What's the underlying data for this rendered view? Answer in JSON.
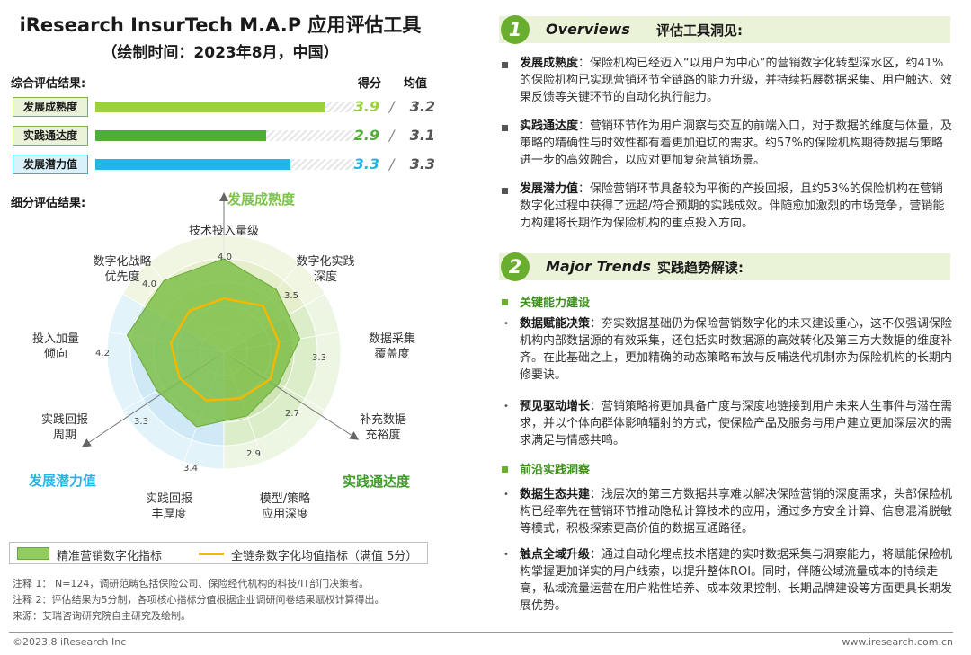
{
  "title": "iResearch InsurTech M.A.P 应用评估工具",
  "subtitle": "（绘制时间：2023年8月，中国）",
  "overall": {
    "label": "综合评估结果:",
    "score_header": "得分",
    "avg_header": "均值",
    "rows": [
      {
        "name": "发展成熟度",
        "score": "3.9",
        "avg": "3.2",
        "score_num": 3.9,
        "avg_num": 3.2,
        "color": "#9bd040",
        "score_color": "#9bd040"
      },
      {
        "name": "实践通达度",
        "score": "2.9",
        "avg": "3.1",
        "score_num": 2.9,
        "avg_num": 3.1,
        "color": "#4fae37",
        "score_color": "#4fae37"
      },
      {
        "name": "发展潜力值",
        "score": "3.3",
        "avg": "3.3",
        "score_num": 3.3,
        "avg_num": 3.3,
        "color": "#23b5e5",
        "score_color": "#23b5e5"
      }
    ]
  },
  "detail_label": "细分评估结果:",
  "chart_data": {
    "type": "radar",
    "scale_max": 5,
    "axes": [
      {
        "label": [
          "技术投入量级"
        ],
        "value": 4.0,
        "value_label": "4.0"
      },
      {
        "label": [
          "数字化实践",
          "深度"
        ],
        "value": 3.5,
        "value_label": "3.5"
      },
      {
        "label": [
          "数据采集",
          "覆盖度"
        ],
        "value": 3.3,
        "value_label": "3.3"
      },
      {
        "label": [
          "补充数据",
          "充裕度"
        ],
        "value": 2.7,
        "value_label": "2.7"
      },
      {
        "label": [
          "模型/策略",
          "应用深度"
        ],
        "value": 2.9,
        "value_label": "2.9"
      },
      {
        "label": [
          "实践回报",
          "丰厚度"
        ],
        "value": 3.4,
        "value_label": "3.4"
      },
      {
        "label": [
          "实践回报",
          "周期"
        ],
        "value": 3.3,
        "value_label": "3.3"
      },
      {
        "label": [
          "投入加量",
          "倾向"
        ],
        "value": 4.2,
        "value_label": "4.2"
      },
      {
        "label": [
          "数字化战略",
          "优先度"
        ],
        "value": 4.0,
        "value_label": "4.0"
      }
    ],
    "average_series_approx": [
      2.3,
      2.6,
      2.4,
      2.3,
      2.1,
      2.2,
      2.2,
      2.3,
      2.3
    ],
    "series": [
      {
        "name": "精准营销数字化指标",
        "values": [
          4.0,
          3.5,
          3.3,
          2.7,
          2.9,
          3.4,
          3.3,
          4.2,
          4.0
        ]
      },
      {
        "name": "全链条数字化均值指标（满值 5分）",
        "values": [
          2.3,
          2.6,
          2.4,
          2.3,
          2.1,
          2.2,
          2.2,
          2.3,
          2.3
        ]
      }
    ],
    "dimensions": [
      {
        "name": "发展成熟度",
        "color": "#7cc34a"
      },
      {
        "name": "实践通达度",
        "color": "#3f9e2a"
      },
      {
        "name": "发展潜力值",
        "color": "#23b5e5"
      }
    ],
    "legend": [
      {
        "name": "精准营销数字化指标",
        "color": "#92cc60"
      },
      {
        "name": "全链条数字化均值指标（满值 5分）",
        "color": "#f5b800"
      }
    ]
  },
  "notes": [
    "注释 1：  N=124，调研范畴包括保险公司、保险经代机构的科技/IT部门决策者。",
    "注释 2：评估结果为5分制，各项核心指标分值根据企业调研问卷结果赋权计算得出。",
    "来源：艾瑞咨询研究院自主研究及绘制。"
  ],
  "footer": {
    "left": "©2023.8 iResearch Inc",
    "right": "www.iresearch.com.cn"
  },
  "overviews": {
    "num": "1",
    "en": "Overviews",
    "cn": "评估工具洞见:",
    "items": [
      {
        "bold": "发展成熟度",
        "text": "：保险机构已经迈入“以用户为中心”的营销数字化转型深水区，约41%的保险机构已实现营销环节全链路的能力升级，并持续拓展数据采集、用户触达、效果反馈等关键环节的自动化执行能力。"
      },
      {
        "bold": "实践通达度",
        "text": "：营销环节作为用户洞察与交互的前端入口，对于数据的维度与体量，及策略的精确性与时效性都有着更加迫切的需求。约57%的保险机构期待数据与策略进一步的高效融合，以应对更加复杂营销场景。"
      },
      {
        "bold": "发展潜力值",
        "text": "：保险营销环节具备较为平衡的产投回报，且约53%的保险机构在营销数字化过程中获得了远超/符合预期的实践成效。伴随愈加激烈的市场竞争，营销能力构建将长期作为保险机构的重点投入方向。"
      }
    ]
  },
  "trends": {
    "num": "2",
    "en": "Major Trends",
    "cn": "实践趋势解读:",
    "groups": [
      {
        "title": "关键能力建设",
        "items": [
          {
            "bold": "数据赋能决策",
            "text": "：夯实数据基础仍为保险营销数字化的未来建设重心，这不仅强调保险机构内部数据源的有效采集，还包括实时数据源的高效转化及第三方大数据的维度补齐。在此基础之上，更加精确的动态策略布放与反哺迭代机制亦为保险机构的长期内修要诀。"
          },
          {
            "bold": "预见驱动增长",
            "text": "：营销策略将更加具备广度与深度地链接到用户未来人生事件与潜在需求，并以个体向群体影响辐射的方式，使保险产品及服务与用户建立更加深层次的需求满足与情感共鸣。"
          }
        ]
      },
      {
        "title": "前沿实践洞察",
        "items": [
          {
            "bold": "数据生态共建",
            "text": "：浅层次的第三方数据共享难以解决保险营销的深度需求，头部保险机构已经率先在营销环节推动隐私计算技术的应用，通过多方安全计算、信息混淆脱敏等模式，积极探索更高价值的数据互通路径。"
          },
          {
            "bold": "触点全域升级",
            "text": "：通过自动化埋点技术搭建的实时数据采集与洞察能力，将赋能保险机构掌握更加详实的用户线索，以提升整体ROI。同时，伴随公域流量成本的持续走高，私域流量运营在用户粘性培养、成本效果控制、长期品牌建设等方面更具长期发展优势。"
          }
        ]
      }
    ]
  }
}
